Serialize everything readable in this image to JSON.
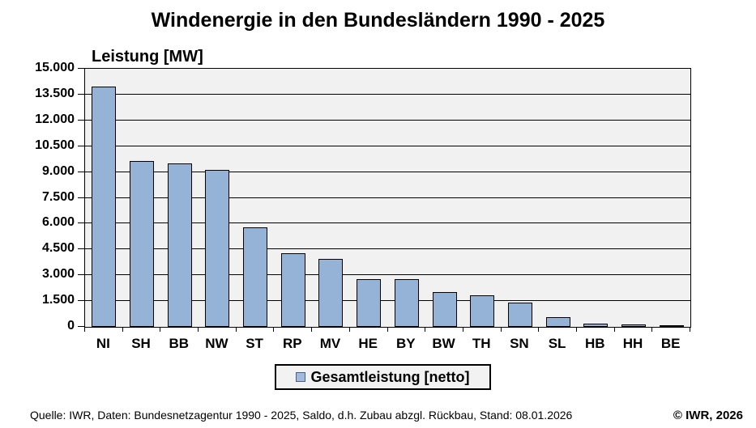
{
  "chart_data": {
    "type": "bar",
    "title": "Windenergie in den Bundesländern 1990 - 2025",
    "ylabel": "Leistung [MW]",
    "xlabel": "",
    "categories": [
      "NI",
      "SH",
      "BB",
      "NW",
      "ST",
      "RP",
      "MV",
      "HE",
      "BY",
      "BW",
      "TH",
      "SN",
      "SL",
      "HB",
      "HH",
      "BE"
    ],
    "values": [
      13950,
      9650,
      9500,
      9100,
      5800,
      4300,
      3950,
      2770,
      2760,
      2030,
      1850,
      1400,
      570,
      200,
      120,
      30
    ],
    "series_name": "Gesamtleistung [netto]",
    "ylim": [
      0,
      15000
    ],
    "ytick_step": 1500,
    "ytick_labels": [
      "0",
      "1.500",
      "3.000",
      "4.500",
      "6.000",
      "7.500",
      "9.000",
      "10.500",
      "12.000",
      "13.500",
      "15.000"
    ],
    "grid": true,
    "legend_position": "bottom",
    "colors": {
      "bar_fill": "#95B3D7",
      "bar_border": "#000000",
      "plot_background": "#F1F1F1",
      "gridline": "#000000",
      "legend_swatch_fill": "#A2BBDC",
      "legend_swatch_border": "#44618C",
      "legend_background": "#F2F2F2"
    }
  },
  "legend": {
    "label": "Gesamtleistung [netto]"
  },
  "footer": {
    "source": "Quelle: IWR, Daten: Bundesnetzagentur 1990 - 2025, Saldo, d.h. Zubau abzgl. Rückbau, Stand: 08.01.2026",
    "copyright": "© IWR, 2026"
  }
}
